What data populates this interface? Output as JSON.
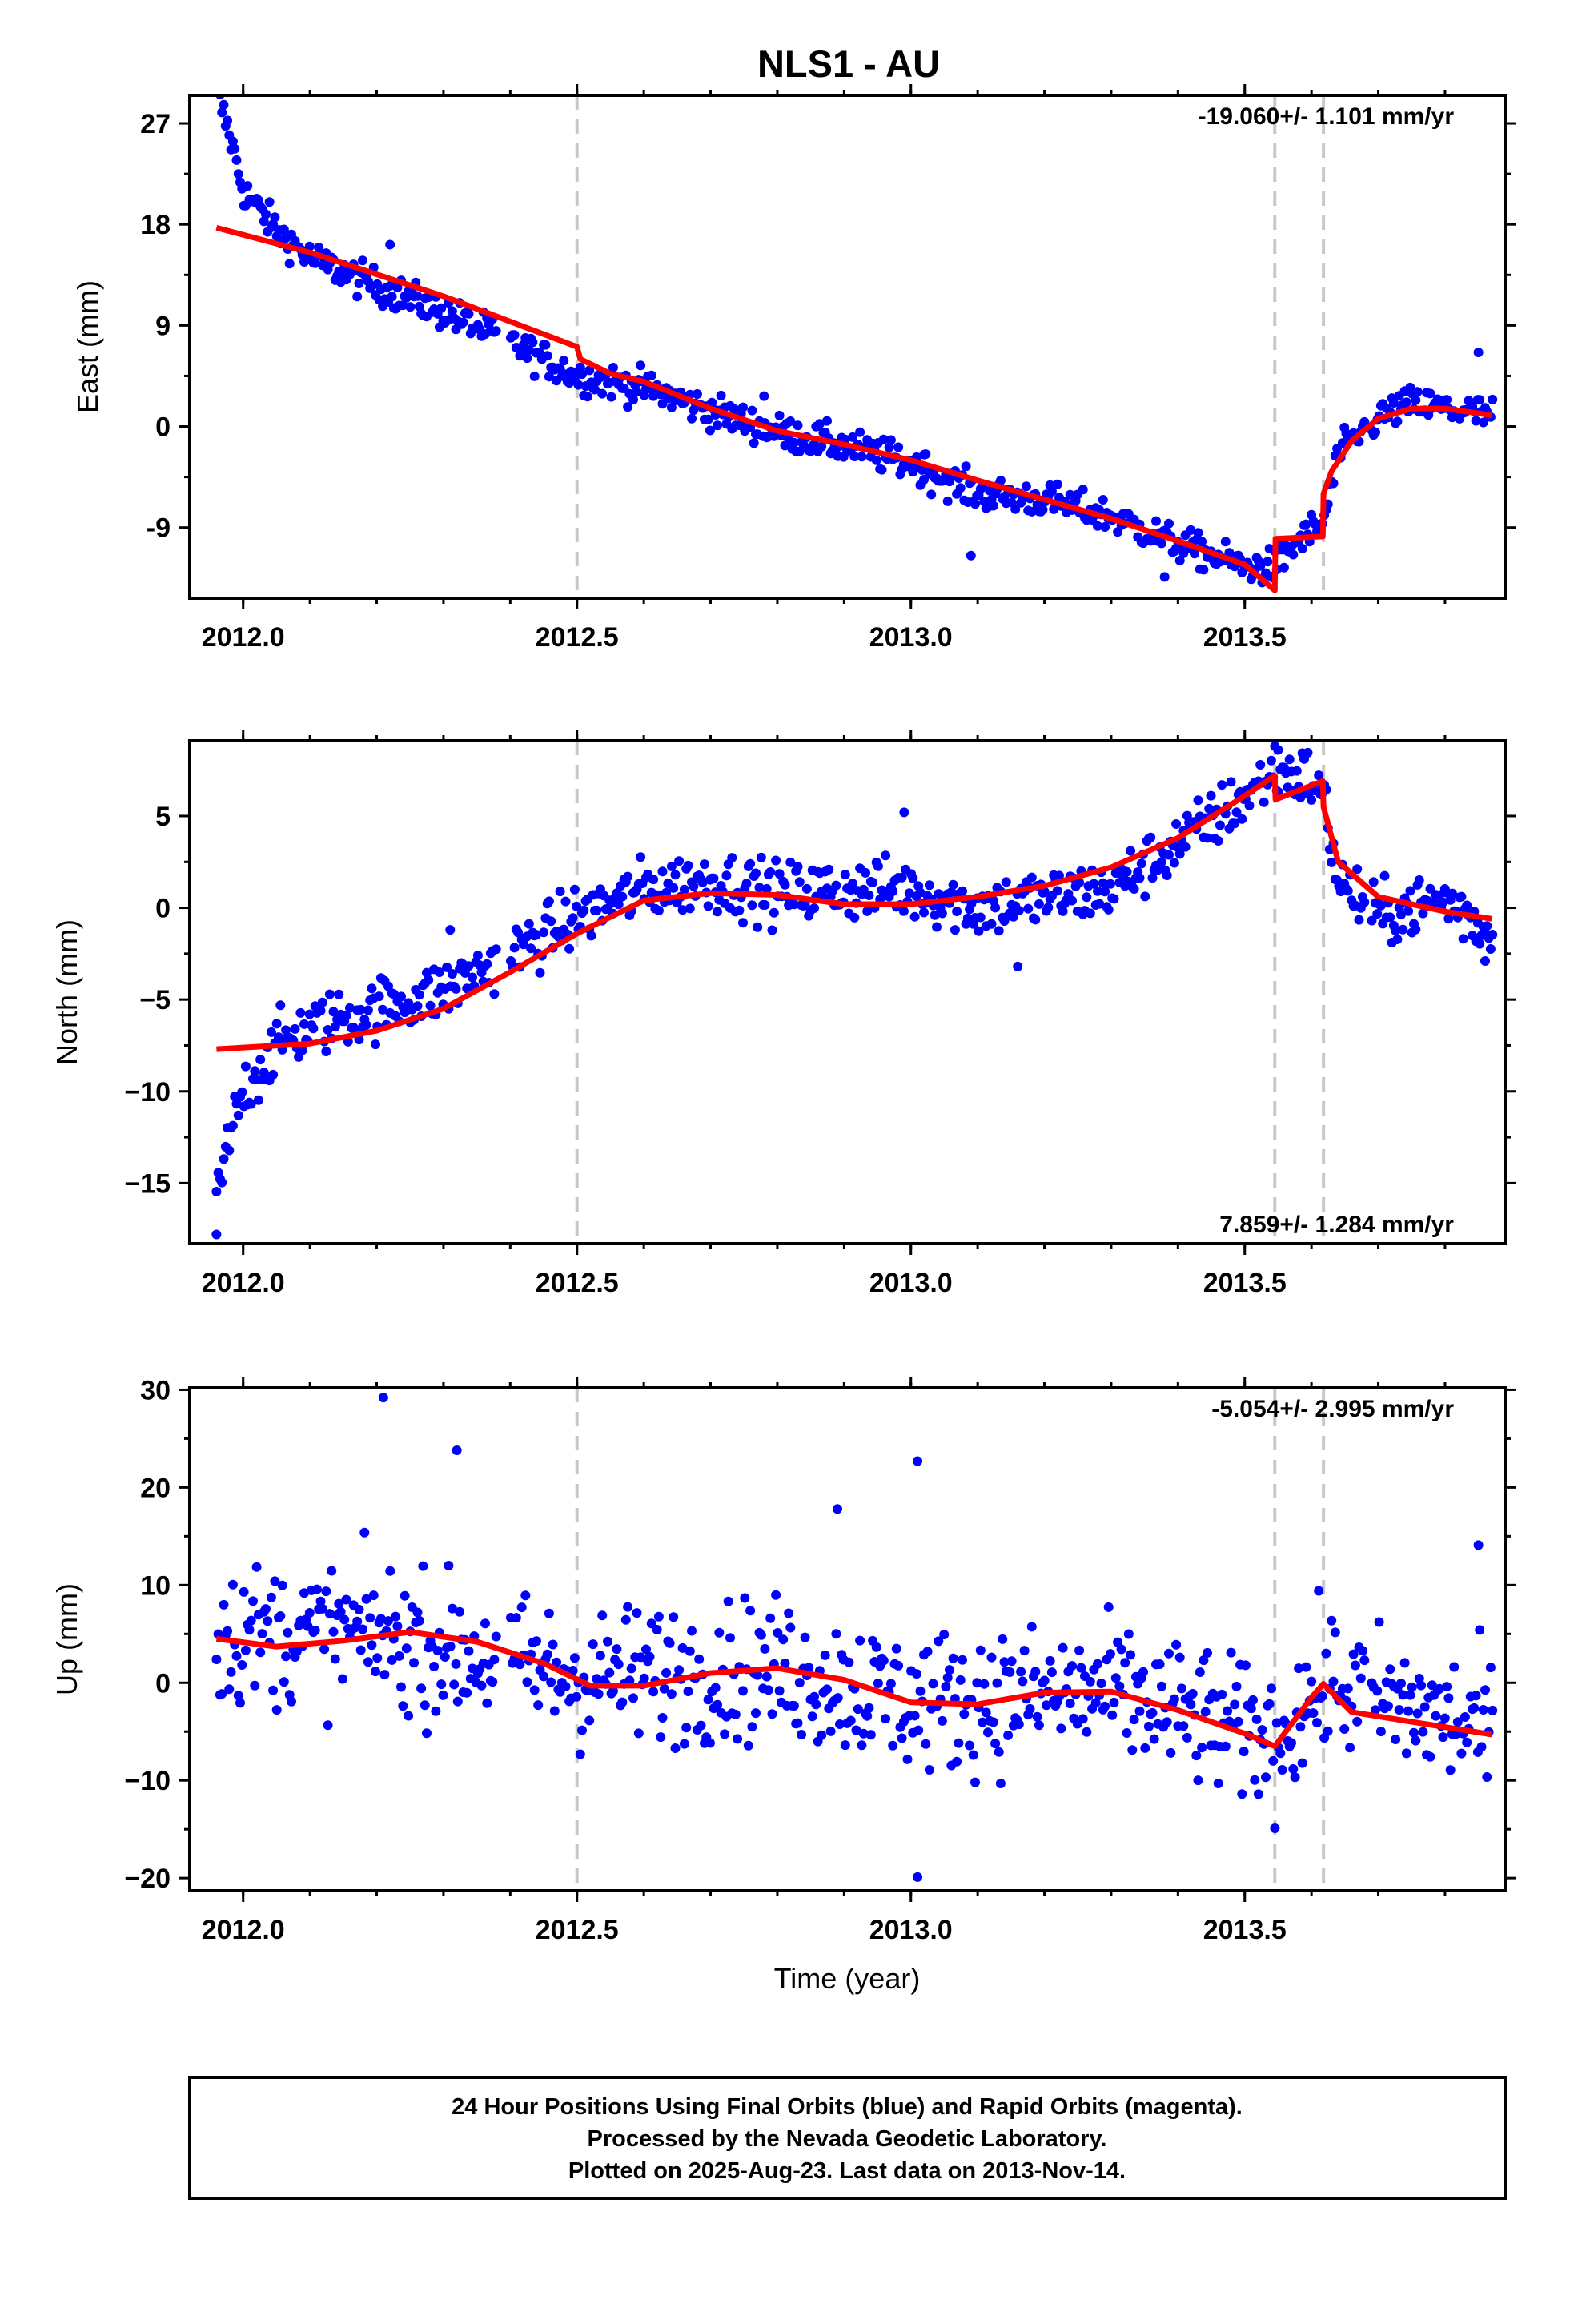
{
  "figure": {
    "title": "NLS1 - AU",
    "xlabel": "Time (year)",
    "footer": [
      "24 Hour Positions Using Final Orbits (blue) and Rapid Orbits (magenta).",
      "Processed by the Nevada Geodetic Laboratory.",
      "Plotted on 2025-Aug-23. Last data on 2013-Nov-14."
    ]
  },
  "colors": {
    "points": "#0000ff",
    "model": "#ff0000",
    "events": "#c8c8c8",
    "frame": "#000000"
  },
  "chart_data": [
    {
      "type": "scatter",
      "name": "east",
      "ylabel": "East (mm)",
      "rate_label": "-19.060+/- 1.101 mm/yr",
      "rate_position": "top-right",
      "xlim": [
        2011.92,
        2013.89
      ],
      "ylim": [
        -15.3,
        29.5
      ],
      "xticks": [
        2012.0,
        2012.5,
        2013.0,
        2013.5
      ],
      "xtick_labels": [
        "2012.0",
        "2012.5",
        "2013.0",
        "2013.5"
      ],
      "yticks": [
        27,
        18,
        9,
        0,
        -9
      ],
      "ytick_labels": [
        "27",
        "18",
        "9",
        "0",
        "-9"
      ],
      "event_lines": [
        2012.5,
        2013.545,
        2013.618
      ],
      "model": [
        [
          2011.96,
          17.7
        ],
        [
          2012.1,
          15.5
        ],
        [
          2012.3,
          11.6
        ],
        [
          2012.5,
          7.1
        ],
        [
          2012.505,
          6.0
        ],
        [
          2012.55,
          4.7
        ],
        [
          2012.6,
          4.0
        ],
        [
          2012.7,
          1.6
        ],
        [
          2012.8,
          -0.4
        ],
        [
          2012.9,
          -1.6
        ],
        [
          2013.0,
          -3.0
        ],
        [
          2013.1,
          -4.8
        ],
        [
          2013.2,
          -6.5
        ],
        [
          2013.3,
          -8.2
        ],
        [
          2013.4,
          -10.2
        ],
        [
          2013.5,
          -12.3
        ],
        [
          2013.545,
          -14.6
        ],
        [
          2013.546,
          -10.0
        ],
        [
          2013.617,
          -9.8
        ],
        [
          2013.618,
          -6.0
        ],
        [
          2013.63,
          -4.0
        ],
        [
          2013.66,
          -1.3
        ],
        [
          2013.7,
          0.7
        ],
        [
          2013.75,
          1.6
        ],
        [
          2013.8,
          1.6
        ],
        [
          2013.87,
          1.0
        ]
      ],
      "points_anchor": [
        [
          2011.96,
          29.8
        ],
        [
          2011.98,
          26.0
        ],
        [
          2012.0,
          21.0
        ],
        [
          2012.05,
          17.5
        ],
        [
          2012.1,
          15.0
        ],
        [
          2012.2,
          12.5
        ],
        [
          2012.3,
          10.2
        ],
        [
          2012.4,
          7.5
        ],
        [
          2012.5,
          4.5
        ],
        [
          2012.6,
          3.5
        ],
        [
          2012.7,
          1.4
        ],
        [
          2012.8,
          -0.5
        ],
        [
          2012.9,
          -1.7
        ],
        [
          2013.0,
          -3.3
        ],
        [
          2013.1,
          -6.0
        ],
        [
          2013.2,
          -6.5
        ],
        [
          2013.3,
          -8.0
        ],
        [
          2013.4,
          -10.5
        ],
        [
          2013.5,
          -12.5
        ],
        [
          2013.545,
          -12.5
        ],
        [
          2013.58,
          -10.2
        ],
        [
          2013.618,
          -8.5
        ],
        [
          2013.64,
          -2.5
        ],
        [
          2013.7,
          0.8
        ],
        [
          2013.75,
          2.0
        ],
        [
          2013.87,
          1.0
        ]
      ],
      "noise": 1.3,
      "outliers": [
        [
          2012.22,
          16.2
        ],
        [
          2012.78,
          2.7
        ],
        [
          2013.02,
          -2.5
        ],
        [
          2013.09,
          -11.5
        ],
        [
          2013.38,
          -13.4
        ],
        [
          2013.85,
          6.6
        ]
      ]
    },
    {
      "type": "scatter",
      "name": "north",
      "ylabel": "North (mm)",
      "rate_label": "7.859+/- 1.284 mm/yr",
      "rate_position": "bottom-right",
      "xlim": [
        2011.92,
        2013.89
      ],
      "ylim": [
        -18.3,
        9.1
      ],
      "xticks": [
        2012.0,
        2012.5,
        2013.0,
        2013.5
      ],
      "xtick_labels": [
        "2012.0",
        "2012.5",
        "2013.0",
        "2013.5"
      ],
      "yticks": [
        5,
        0,
        -5,
        -10,
        -15
      ],
      "ytick_labels": [
        "5",
        "0",
        "−5",
        "−10",
        "−15"
      ],
      "event_lines": [
        2012.5,
        2013.545,
        2013.618
      ],
      "model": [
        [
          2011.96,
          -7.7
        ],
        [
          2012.1,
          -7.4
        ],
        [
          2012.2,
          -6.7
        ],
        [
          2012.3,
          -5.5
        ],
        [
          2012.4,
          -3.5
        ],
        [
          2012.5,
          -1.4
        ],
        [
          2012.6,
          0.4
        ],
        [
          2012.7,
          0.8
        ],
        [
          2012.8,
          0.7
        ],
        [
          2012.9,
          0.2
        ],
        [
          2013.0,
          0.2
        ],
        [
          2013.1,
          0.6
        ],
        [
          2013.2,
          1.2
        ],
        [
          2013.3,
          2.2
        ],
        [
          2013.4,
          3.8
        ],
        [
          2013.5,
          6.1
        ],
        [
          2013.545,
          7.2
        ],
        [
          2013.546,
          5.9
        ],
        [
          2013.617,
          6.9
        ],
        [
          2013.618,
          5.5
        ],
        [
          2013.64,
          2.5
        ],
        [
          2013.7,
          0.6
        ],
        [
          2013.8,
          -0.2
        ],
        [
          2013.87,
          -0.6
        ]
      ],
      "points_anchor": [
        [
          2011.96,
          -16.0
        ],
        [
          2011.98,
          -12.5
        ],
        [
          2012.0,
          -10.0
        ],
        [
          2012.05,
          -7.5
        ],
        [
          2012.1,
          -6.5
        ],
        [
          2012.2,
          -5.5
        ],
        [
          2012.3,
          -4.5
        ],
        [
          2012.4,
          -2.5
        ],
        [
          2012.5,
          -0.5
        ],
        [
          2012.6,
          1.0
        ],
        [
          2012.7,
          1.5
        ],
        [
          2012.8,
          0.8
        ],
        [
          2012.9,
          1.0
        ],
        [
          2013.0,
          1.0
        ],
        [
          2013.1,
          0.0
        ],
        [
          2013.2,
          0.5
        ],
        [
          2013.3,
          1.0
        ],
        [
          2013.4,
          3.5
        ],
        [
          2013.5,
          6.0
        ],
        [
          2013.545,
          7.5
        ],
        [
          2013.6,
          7.0
        ],
        [
          2013.618,
          6.0
        ],
        [
          2013.64,
          1.5
        ],
        [
          2013.7,
          -0.5
        ],
        [
          2013.8,
          0.5
        ],
        [
          2013.87,
          -1.5
        ]
      ],
      "noise": 1.4,
      "outliers": [
        [
          2011.96,
          -17.8
        ],
        [
          2012.31,
          -1.2
        ],
        [
          2012.99,
          5.2
        ],
        [
          2013.16,
          -3.2
        ],
        [
          2013.55,
          8.6
        ],
        [
          2013.86,
          -2.9
        ]
      ]
    },
    {
      "type": "scatter",
      "name": "up",
      "ylabel": "Up (mm)",
      "rate_label": "-5.054+/- 2.995 mm/yr",
      "rate_position": "top-right",
      "xlim": [
        2011.92,
        2013.89
      ],
      "ylim": [
        -21.3,
        30.2
      ],
      "xticks": [
        2012.0,
        2012.5,
        2013.0,
        2013.5
      ],
      "xtick_labels": [
        "2012.0",
        "2012.5",
        "2013.0",
        "2013.5"
      ],
      "yticks": [
        30,
        20,
        10,
        0,
        -10,
        -20
      ],
      "ytick_labels": [
        "30",
        "20",
        "10",
        "0",
        "−10",
        "−20"
      ],
      "event_lines": [
        2012.5,
        2013.545,
        2013.618
      ],
      "model": [
        [
          2011.96,
          4.5
        ],
        [
          2012.05,
          3.7
        ],
        [
          2012.15,
          4.3
        ],
        [
          2012.25,
          5.2
        ],
        [
          2012.35,
          4.2
        ],
        [
          2012.45,
          2.0
        ],
        [
          2012.52,
          -0.3
        ],
        [
          2012.6,
          -0.3
        ],
        [
          2012.7,
          1.0
        ],
        [
          2012.8,
          1.5
        ],
        [
          2012.9,
          0.3
        ],
        [
          2013.0,
          -2.0
        ],
        [
          2013.1,
          -2.2
        ],
        [
          2013.2,
          -1.0
        ],
        [
          2013.3,
          -0.9
        ],
        [
          2013.4,
          -2.8
        ],
        [
          2013.5,
          -5.2
        ],
        [
          2013.545,
          -6.5
        ],
        [
          2013.6,
          -1.5
        ],
        [
          2013.618,
          -0.1
        ],
        [
          2013.66,
          -3.0
        ],
        [
          2013.75,
          -4.0
        ],
        [
          2013.87,
          -5.3
        ]
      ],
      "points_anchor": [
        [
          2011.96,
          5.0
        ],
        [
          2012.2,
          5.0
        ],
        [
          2012.5,
          0.5
        ],
        [
          2012.8,
          1.5
        ],
        [
          2013.0,
          -2.0
        ],
        [
          2013.3,
          -1.0
        ],
        [
          2013.545,
          -6.0
        ],
        [
          2013.618,
          0.0
        ],
        [
          2013.87,
          -5.0
        ]
      ],
      "noise": 6.0,
      "outliers": [
        [
          2012.21,
          29.2
        ],
        [
          2012.32,
          23.8
        ],
        [
          2013.01,
          22.7
        ],
        [
          2012.89,
          17.8
        ],
        [
          2013.85,
          14.1
        ],
        [
          2013.01,
          -19.9
        ]
      ]
    }
  ]
}
